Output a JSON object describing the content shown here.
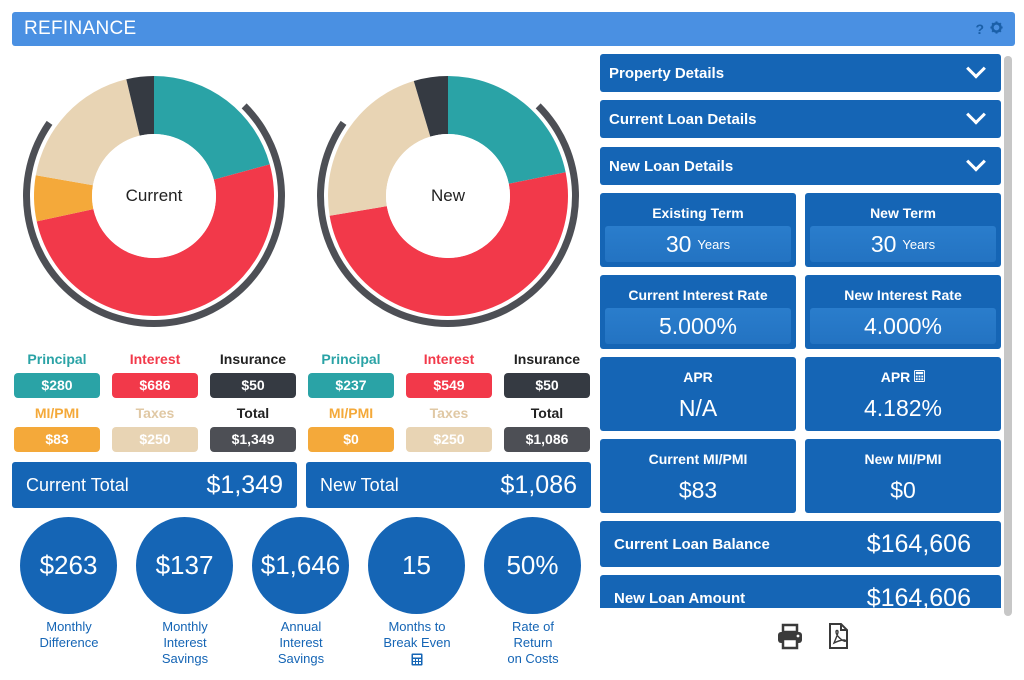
{
  "header": {
    "title": "REFINANCE",
    "help_icon": "question-icon",
    "settings_icon": "gear-icon"
  },
  "colors": {
    "principal": "#2aa3a6",
    "interest": "#f2394a",
    "insurance": "#353a42",
    "mipmi": "#f4a93a",
    "taxes": "#e8d4b4",
    "total": "#4d4f55",
    "blue": "#1565b5"
  },
  "charts": {
    "current": {
      "label": "Current",
      "slices": [
        {
          "name": "Principal",
          "value": 280
        },
        {
          "name": "Interest",
          "value": 686
        },
        {
          "name": "MI/PMI",
          "value": 83
        },
        {
          "name": "Taxes",
          "value": 250
        },
        {
          "name": "Insurance",
          "value": 50
        }
      ]
    },
    "new": {
      "label": "New",
      "slices": [
        {
          "name": "Principal",
          "value": 237
        },
        {
          "name": "Interest",
          "value": 549
        },
        {
          "name": "MI/PMI",
          "value": 0
        },
        {
          "name": "Taxes",
          "value": 250
        },
        {
          "name": "Insurance",
          "value": 50
        }
      ]
    }
  },
  "legend_current": {
    "principal_label": "Principal",
    "principal": "$280",
    "interest_label": "Interest",
    "interest": "$686",
    "insurance_label": "Insurance",
    "insurance": "$50",
    "mipmi_label": "MI/PMI",
    "mipmi": "$83",
    "taxes_label": "Taxes",
    "taxes": "$250",
    "total_label": "Total",
    "total": "$1,349"
  },
  "legend_new": {
    "principal_label": "Principal",
    "principal": "$237",
    "interest_label": "Interest",
    "interest": "$549",
    "insurance_label": "Insurance",
    "insurance": "$50",
    "mipmi_label": "MI/PMI",
    "mipmi": "$0",
    "taxes_label": "Taxes",
    "taxes": "$250",
    "total_label": "Total",
    "total": "$1,086"
  },
  "totals": {
    "current_label": "Current Total",
    "current_value": "$1,349",
    "new_label": "New Total",
    "new_value": "$1,086"
  },
  "stats": [
    {
      "value": "$263",
      "caption1": "Monthly",
      "caption2": "Difference",
      "caption3": ""
    },
    {
      "value": "$137",
      "caption1": "Monthly",
      "caption2": "Interest",
      "caption3": "Savings"
    },
    {
      "value": "$1,646",
      "caption1": "Annual",
      "caption2": "Interest",
      "caption3": "Savings"
    },
    {
      "value": "15",
      "caption1": "Months to",
      "caption2": "Break Even",
      "caption3": ""
    },
    {
      "value": "50%",
      "caption1": "Rate of",
      "caption2": "Return",
      "caption3": "on Costs"
    }
  ],
  "accordions": {
    "property": "Property Details",
    "current_loan": "Current Loan Details",
    "new_loan": "New Loan Details"
  },
  "tiles": {
    "existing_term_label": "Existing Term",
    "existing_term_value": "30",
    "existing_term_unit": "Years",
    "new_term_label": "New Term",
    "new_term_value": "30",
    "new_term_unit": "Years",
    "current_rate_label": "Current Interest Rate",
    "current_rate_value": "5.000%",
    "new_rate_label": "New Interest Rate",
    "new_rate_value": "4.000%",
    "apr_label": "APR",
    "apr_value": "N/A",
    "new_apr_label": "APR",
    "new_apr_value": "4.182%",
    "current_mi_label": "Current MI/PMI",
    "current_mi_value": "$83",
    "new_mi_label": "New MI/PMI",
    "new_mi_value": "$0"
  },
  "balances": {
    "current_balance_label": "Current Loan Balance",
    "current_balance_value": "$164,606",
    "new_amount_label": "New Loan Amount",
    "new_amount_value": "$164,606"
  }
}
